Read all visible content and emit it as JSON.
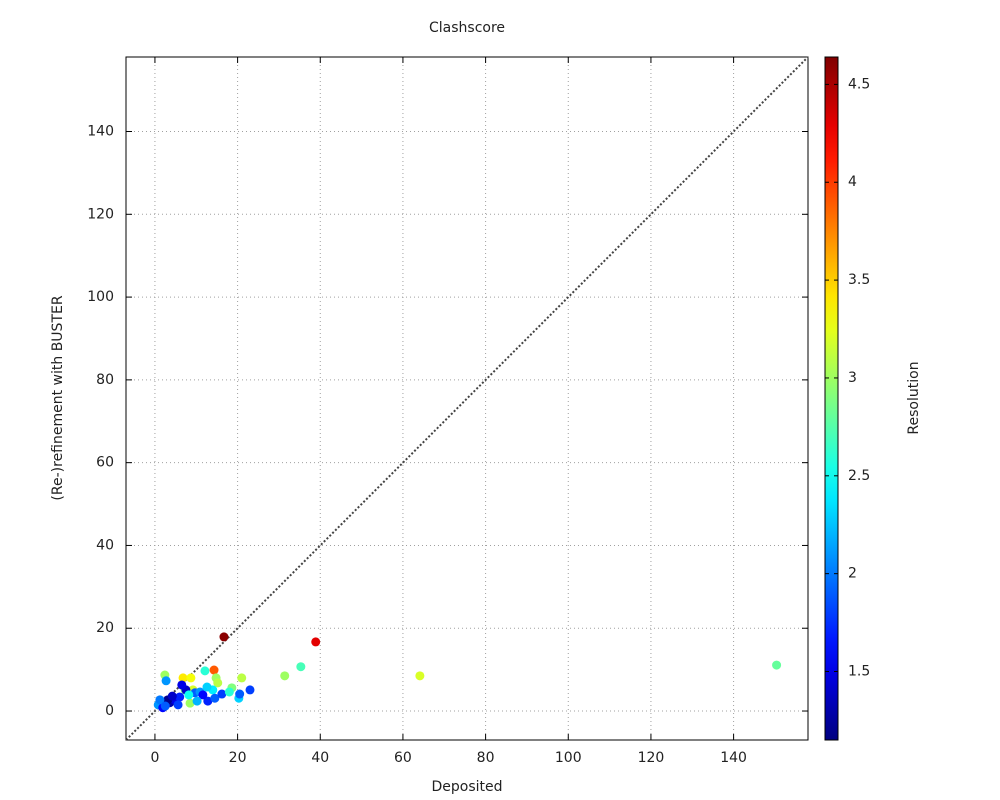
{
  "chart_data": {
    "type": "scatter",
    "title": "Clashscore",
    "xlabel": "Deposited",
    "ylabel": "(Re-)refinement with BUSTER",
    "colorbar_label": "Resolution",
    "colormap": "jet",
    "grid": true,
    "diagonal": true,
    "xlim": [
      -7,
      158
    ],
    "ylim": [
      -7,
      158
    ],
    "xticks": [
      0,
      20,
      40,
      60,
      80,
      100,
      120,
      140
    ],
    "yticks": [
      0,
      20,
      40,
      60,
      80,
      100,
      120,
      140
    ],
    "clim": [
      1.15,
      4.64
    ],
    "cticks": [
      1.5,
      2,
      2.5,
      3,
      3.5,
      4,
      4.5
    ],
    "x": [
      16.7,
      38.9,
      35.3,
      31.4,
      64.1,
      150.4,
      14.3,
      12.1,
      21.0,
      2.4,
      2.7,
      14.8,
      15.2,
      23.0,
      18.6,
      20.3,
      20.5,
      14.0,
      12.8,
      14.5,
      16.2,
      8.5,
      6.8,
      8.7,
      9.2,
      7.3,
      0.8,
      1.9,
      3.6,
      4.8,
      6.0,
      7.5,
      9.7,
      10.9,
      11.6,
      5.6,
      3.1,
      1.2,
      8.2,
      4.2,
      10.2,
      6.5,
      2.5,
      18.0,
      12.6
    ],
    "y": [
      17.9,
      16.7,
      10.7,
      8.5,
      8.5,
      11.1,
      9.9,
      9.7,
      8.0,
      8.7,
      7.3,
      8.0,
      6.8,
      5.1,
      5.6,
      3.1,
      4.1,
      5.1,
      2.4,
      3.1,
      4.1,
      1.9,
      8.0,
      8.0,
      5.1,
      5.1,
      1.5,
      0.8,
      2.0,
      2.7,
      3.4,
      5.1,
      4.4,
      4.6,
      3.9,
      1.5,
      2.7,
      2.7,
      3.9,
      3.6,
      2.4,
      6.3,
      1.2,
      4.6,
      5.8
    ],
    "color_values": [
      4.6,
      4.3,
      2.7,
      3.0,
      3.2,
      2.8,
      3.9,
      2.6,
      3.1,
      3.0,
      2.1,
      3.0,
      3.1,
      1.8,
      2.9,
      2.3,
      1.9,
      2.4,
      1.7,
      1.9,
      1.8,
      3.0,
      3.4,
      3.3,
      3.2,
      2.9,
      2.1,
      1.6,
      1.3,
      1.5,
      1.7,
      1.4,
      1.9,
      2.1,
      1.6,
      1.8,
      1.2,
      2.0,
      2.5,
      1.4,
      2.2,
      1.5,
      1.9,
      2.6,
      2.3
    ]
  }
}
